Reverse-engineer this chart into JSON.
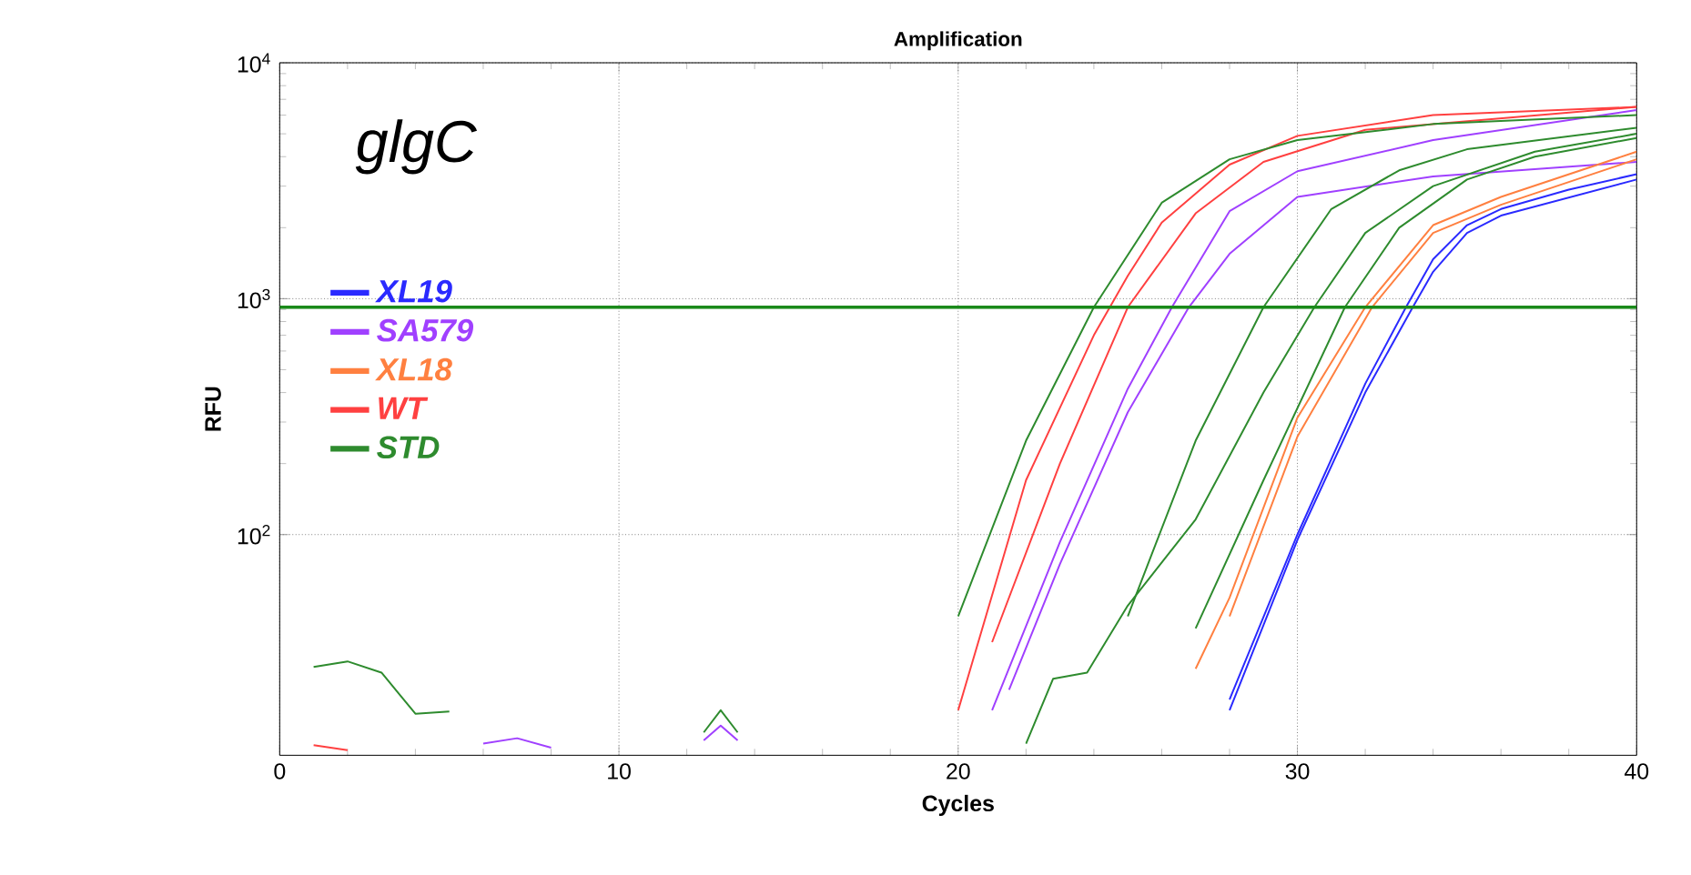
{
  "chart_data": {
    "type": "line",
    "title": "Amplification",
    "xlabel": "Cycles",
    "ylabel": "RFU",
    "annotations": [
      "*glgC*"
    ],
    "log": "y",
    "grid": true,
    "legend": "left",
    "marker": "none",
    "line_style": "solid",
    "xlim": [
      0,
      40
    ],
    "xticks": [
      0,
      10,
      20,
      30,
      40
    ],
    "ylim": [
      11.6,
      10000
    ],
    "yticks": [
      {
        "value": 100,
        "label": "10$^{2}$"
      },
      {
        "value": 1000,
        "label": "10$^{3}$"
      },
      {
        "value": 10000,
        "label": "10$^{4}$"
      }
    ],
    "ref_lines": [
      {
        "axis": "y",
        "value": 920,
        "color": "#1a8a1a"
      }
    ],
    "series": [
      {
        "name": "XL19",
        "color": "#2a2aff",
        "x": [
          28,
          30,
          32,
          33.2,
          34,
          35,
          36,
          38,
          40
        ],
        "values": [
          20,
          100,
          436,
          920,
          1470,
          2050,
          2400,
          2900,
          3370
        ]
      },
      {
        "color": "#2a2aff",
        "x": [
          28,
          30,
          32,
          33.4,
          34,
          35,
          36,
          40
        ],
        "values": [
          18,
          95,
          400,
          920,
          1300,
          1900,
          2250,
          3200
        ]
      },
      {
        "name": "SA579",
        "color": "#a040ff",
        "x": [
          21,
          23,
          25,
          26.3,
          28,
          30,
          34,
          40
        ],
        "values": [
          18,
          93,
          415,
          920,
          2350,
          3470,
          4700,
          6300
        ]
      },
      {
        "color": "#a040ff",
        "x": [
          21.5,
          23,
          25,
          26.8,
          28,
          30,
          34,
          40
        ],
        "values": [
          22,
          75,
          330,
          920,
          1550,
          2700,
          3300,
          3800
        ]
      },
      {
        "color": "#a040ff",
        "x": [
          6,
          7,
          8
        ],
        "values": [
          13,
          13.7,
          12.5
        ]
      },
      {
        "color": "#a040ff",
        "x": [
          12.5,
          13,
          13.5
        ],
        "values": [
          13.4,
          15.5,
          13.4
        ]
      },
      {
        "name": "XL18",
        "color": "#ff8040",
        "x": [
          27,
          28,
          30,
          32,
          34,
          36,
          40
        ],
        "values": [
          27,
          54,
          313,
          920,
          2050,
          2700,
          4200
        ]
      },
      {
        "color": "#ff8040",
        "x": [
          28,
          30,
          32.2,
          34,
          36,
          40
        ],
        "values": [
          45,
          260,
          920,
          1900,
          2500,
          3900
        ]
      },
      {
        "name": "WT",
        "color": "#ff4040",
        "x": [
          20,
          22,
          24,
          25,
          26,
          28,
          30,
          34,
          40
        ],
        "values": [
          18,
          170,
          700,
          1250,
          2100,
          3700,
          4900,
          6000,
          6500
        ]
      },
      {
        "color": "#ff4040",
        "x": [
          21,
          23,
          25,
          27,
          29,
          32,
          40
        ],
        "values": [
          35,
          200,
          920,
          2300,
          3800,
          5200,
          6500
        ]
      },
      {
        "color": "#ff4040",
        "x": [
          1,
          2
        ],
        "values": [
          12.8,
          12.2
        ]
      },
      {
        "name": "STD",
        "color": "#2e8b2e",
        "x": [
          20,
          22,
          24,
          26,
          28,
          30,
          34,
          40
        ],
        "values": [
          45,
          250,
          920,
          2550,
          3900,
          4700,
          5500,
          6000
        ]
      },
      {
        "color": "#2e8b2e",
        "x": [
          1,
          2,
          3,
          4,
          5
        ],
        "values": [
          27.5,
          29,
          26,
          17.4,
          17.8
        ]
      },
      {
        "color": "#2e8b2e",
        "x": [
          12.5,
          13,
          13.5
        ],
        "values": [
          14.5,
          18,
          14.5
        ]
      },
      {
        "color": "#2e8b2e",
        "x": [
          25,
          27,
          29,
          31,
          33,
          35,
          40
        ],
        "values": [
          45,
          250,
          920,
          2400,
          3500,
          4300,
          5300
        ]
      },
      {
        "color": "#2e8b2e",
        "x": [
          22,
          22.8,
          23.8,
          25,
          27,
          29,
          30.5,
          32,
          34,
          37,
          40
        ],
        "values": [
          13,
          24.5,
          26,
          50,
          116,
          400,
          920,
          1900,
          3000,
          4200,
          5000
        ]
      },
      {
        "color": "#2e8b2e",
        "x": [
          27,
          29,
          31.4,
          33,
          35,
          37,
          40
        ],
        "values": [
          40,
          170,
          920,
          2000,
          3200,
          4000,
          4800
        ]
      }
    ]
  }
}
